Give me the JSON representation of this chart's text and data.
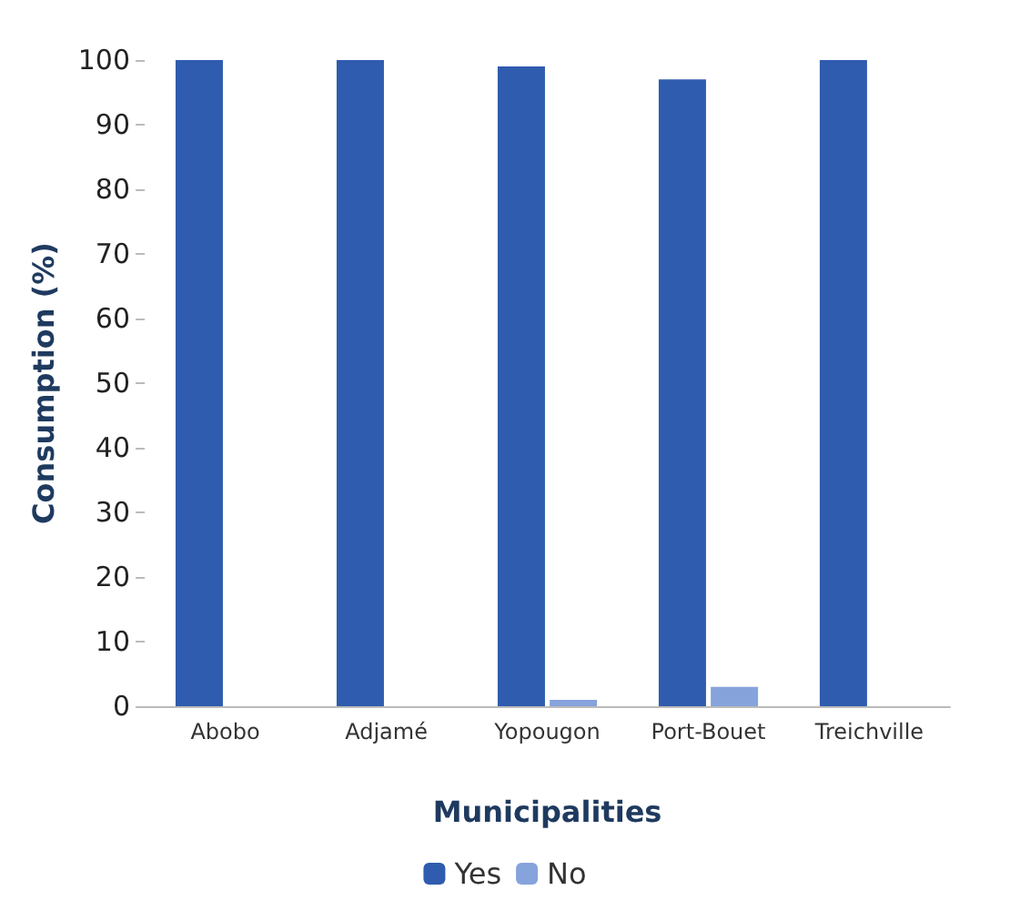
{
  "chart_data": {
    "type": "bar",
    "xlabel": "Municipalities",
    "ylabel": "Consumption (%)",
    "categories": [
      "Abobo",
      "Adjamé",
      "Yopougon",
      "Port-Bouet",
      "Treichville"
    ],
    "series": [
      {
        "name": "Yes",
        "color": "#2f5cae",
        "values": [
          100,
          100,
          99,
          97,
          100
        ]
      },
      {
        "name": "No",
        "color": "#86a3dc",
        "values": [
          0,
          0,
          1,
          3,
          0
        ]
      }
    ],
    "ylim": [
      0,
      100
    ],
    "yticks": [
      0,
      10,
      20,
      30,
      40,
      50,
      60,
      70,
      80,
      90,
      100
    ],
    "grid": false,
    "legend": "bottom"
  }
}
